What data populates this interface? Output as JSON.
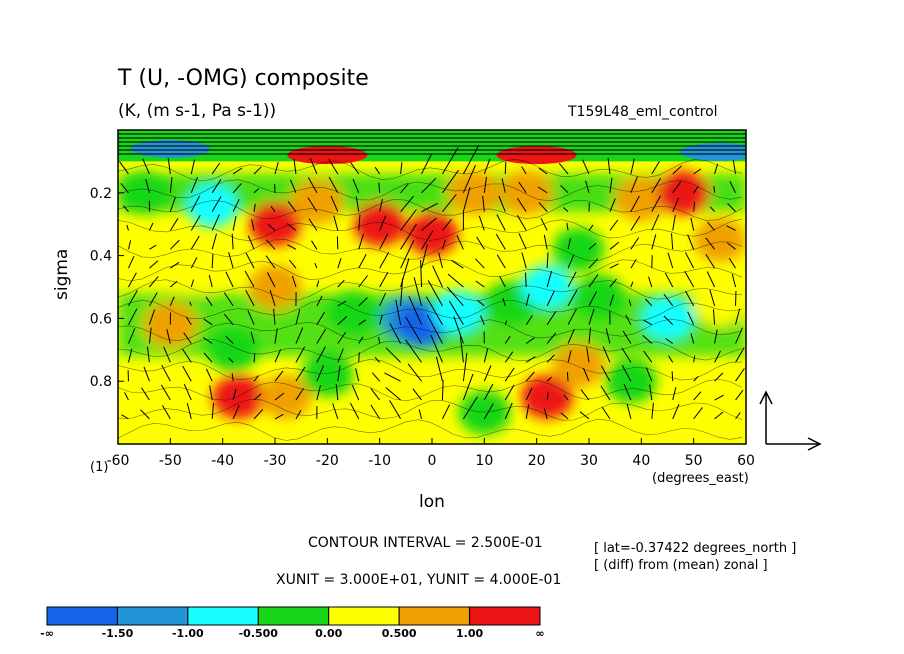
{
  "chart_data": {
    "type": "heatmap",
    "title": "T (U, -OMG) composite",
    "subtitle": "(K, (m s-1, Pa s-1))",
    "run_label": "T159L48_eml_control",
    "xlabel": "lon",
    "xunits": "(degrees_east)",
    "ylabel": "sigma",
    "y_unit_label": "(1)",
    "xlim": [
      -60,
      60
    ],
    "ylim": [
      1.0,
      0.0
    ],
    "x_ticks": [
      -60,
      -50,
      -40,
      -30,
      -20,
      -10,
      0,
      10,
      20,
      30,
      40,
      50,
      60
    ],
    "x_tick_labels": [
      "-60",
      "-50",
      "-40",
      "-30",
      "-20",
      "-10",
      "0",
      "10",
      "20",
      "30",
      "40",
      "50",
      "60"
    ],
    "y_ticks": [
      0.2,
      0.4,
      0.6,
      0.8
    ],
    "y_tick_labels": [
      "0.2",
      "0.4",
      "0.6",
      "0.8"
    ],
    "contour_interval_text": "CONTOUR INTERVAL = 2.500E-01",
    "vector_units_text": "XUNIT = 3.000E+01, YUNIT = 4.000E-01",
    "meta_lat": "[ lat=-0.37422 degrees_north ]",
    "meta_diff": "[ (diff) from (mean) zonal ]",
    "colorbar": {
      "colors": [
        "#1764ea",
        "#2195d6",
        "#18ffff",
        "#18d718",
        "#ffff00",
        "#f0a000",
        "#ec1414"
      ],
      "labels": [
        "-∞",
        "-1.50",
        "-1.00",
        "-0.500",
        "0.00",
        "0.500",
        "1.00",
        "∞"
      ]
    },
    "field_bands": [
      {
        "sigma_top": 0.0,
        "sigma_bottom": 0.1,
        "blobs": [
          {
            "lon": -50,
            "sigma": 0.06,
            "level": -1.5
          },
          {
            "lon": -20,
            "sigma": 0.08,
            "level": 1.25
          },
          {
            "lon": 20,
            "sigma": 0.08,
            "level": 1.25
          },
          {
            "lon": 55,
            "sigma": 0.07,
            "level": -1.5
          }
        ]
      }
    ],
    "blobs": [
      {
        "lon": -55,
        "sigma": 0.2,
        "level": -0.25
      },
      {
        "lon": -42,
        "sigma": 0.24,
        "level": -0.75
      },
      {
        "lon": -30,
        "sigma": 0.3,
        "level": 1.25
      },
      {
        "lon": -22,
        "sigma": 0.23,
        "level": 0.75
      },
      {
        "lon": -10,
        "sigma": 0.3,
        "level": 1.25
      },
      {
        "lon": 0,
        "sigma": 0.33,
        "level": 1.25
      },
      {
        "lon": 8,
        "sigma": 0.2,
        "level": 0.75
      },
      {
        "lon": 18,
        "sigma": 0.2,
        "level": 0.75
      },
      {
        "lon": 28,
        "sigma": 0.38,
        "level": -0.25
      },
      {
        "lon": 40,
        "sigma": 0.22,
        "level": 0.75
      },
      {
        "lon": 48,
        "sigma": 0.2,
        "level": 1.25
      },
      {
        "lon": 55,
        "sigma": 0.35,
        "level": 0.75
      },
      {
        "lon": -45,
        "sigma": 0.45,
        "level": 0.25
      },
      {
        "lon": -30,
        "sigma": 0.5,
        "level": 0.75
      },
      {
        "lon": -15,
        "sigma": 0.58,
        "level": -0.25
      },
      {
        "lon": -5,
        "sigma": 0.6,
        "level": -1.25
      },
      {
        "lon": -2,
        "sigma": 0.62,
        "level": -1.75
      },
      {
        "lon": 5,
        "sigma": 0.58,
        "level": -0.75
      },
      {
        "lon": 15,
        "sigma": 0.55,
        "level": -0.25
      },
      {
        "lon": 22,
        "sigma": 0.5,
        "level": -0.75
      },
      {
        "lon": 32,
        "sigma": 0.53,
        "level": -0.25
      },
      {
        "lon": 45,
        "sigma": 0.6,
        "level": -0.75
      },
      {
        "lon": 55,
        "sigma": 0.55,
        "level": 0.25
      },
      {
        "lon": -50,
        "sigma": 0.62,
        "level": 0.75
      },
      {
        "lon": -38,
        "sigma": 0.7,
        "level": -0.25
      },
      {
        "lon": -37,
        "sigma": 0.85,
        "level": 1.25
      },
      {
        "lon": -28,
        "sigma": 0.85,
        "level": 0.75
      },
      {
        "lon": -20,
        "sigma": 0.78,
        "level": -0.25
      },
      {
        "lon": -8,
        "sigma": 0.9,
        "level": 0.25
      },
      {
        "lon": 10,
        "sigma": 0.9,
        "level": -0.25
      },
      {
        "lon": 22,
        "sigma": 0.85,
        "level": 1.25
      },
      {
        "lon": 28,
        "sigma": 0.75,
        "level": 0.75
      },
      {
        "lon": 38,
        "sigma": 0.8,
        "level": -0.25
      },
      {
        "lon": 50,
        "sigma": 0.9,
        "level": 0.25
      }
    ]
  }
}
